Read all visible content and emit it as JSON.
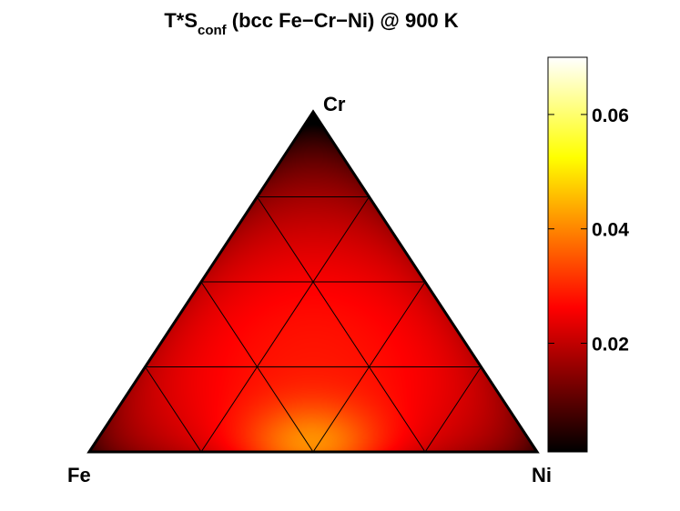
{
  "chart_data": {
    "type": "heatmap",
    "title": {
      "prefix": "T*S",
      "subscript": "conf",
      "suffix": " (bcc Fe−Cr−Ni) @ 900 K"
    },
    "vertices": {
      "left": "Fe",
      "top": "Cr",
      "right": "Ni"
    },
    "grid_divisions": 4,
    "colorbar": {
      "range": [
        0.001,
        0.07
      ],
      "ticks": [
        0.02,
        0.04,
        0.06
      ],
      "tick_labels": [
        "0.02",
        "0.04",
        "0.06"
      ],
      "colormap": "hot"
    },
    "peak": {
      "location": "near Fe-Ni edge, center",
      "value": 0.045
    }
  }
}
